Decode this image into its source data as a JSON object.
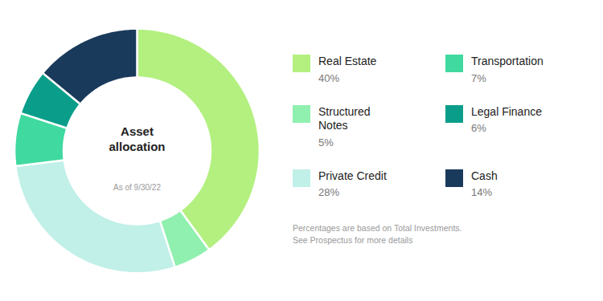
{
  "chart_data": {
    "type": "pie",
    "title": "Asset\nallocation",
    "subtitle": "As of 9/30/22",
    "categories": [
      "Real Estate",
      "Structured\nNotes",
      "Private Credit",
      "Transportation",
      "Legal Finance",
      "Cash"
    ],
    "values": [
      40,
      5,
      28,
      7,
      6,
      14
    ],
    "value_labels": [
      "40%",
      "5%",
      "28%",
      "7%",
      "6%",
      "14%"
    ],
    "colors": [
      "#b3f080",
      "#90f0b0",
      "#c0f0e8",
      "#40d9a0",
      "#0a9e8a",
      "#1a3a5c"
    ],
    "legend": "right",
    "annotations": [
      "Percentages are based on Total Investments.\nSee Prospectus for more details"
    ]
  }
}
